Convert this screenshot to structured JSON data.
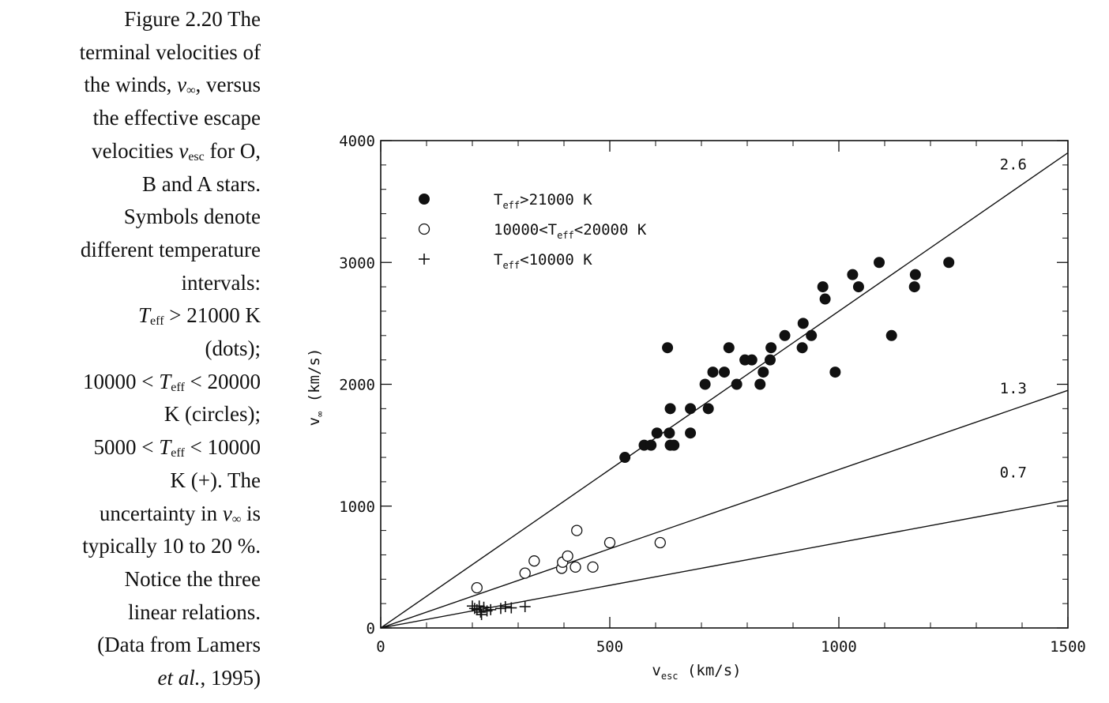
{
  "caption": {
    "figure_label": "Figure 2.20",
    "lines": [
      {
        "type": "text",
        "text": "Figure 2.20 The"
      },
      {
        "type": "text",
        "text": "terminal velocities of"
      },
      {
        "type": "parts",
        "parts": [
          {
            "t": "the winds, "
          },
          {
            "t": "v",
            "i": true
          },
          {
            "t": "∞",
            "sub": true,
            "i": true
          },
          {
            "t": ", versus"
          }
        ]
      },
      {
        "type": "text",
        "text": "the effective escape"
      },
      {
        "type": "parts",
        "parts": [
          {
            "t": "velocities "
          },
          {
            "t": "v",
            "i": true
          },
          {
            "t": "esc",
            "sub": true
          },
          {
            "t": " for O,"
          }
        ]
      },
      {
        "type": "text",
        "text": "B and A stars."
      },
      {
        "type": "text",
        "text": "Symbols denote"
      },
      {
        "type": "text",
        "text": "different temperature"
      },
      {
        "type": "text",
        "text": "intervals:"
      },
      {
        "type": "parts",
        "parts": [
          {
            "t": "T",
            "i": true
          },
          {
            "t": "eff",
            "sub": true
          },
          {
            "t": " > 21000 K"
          }
        ]
      },
      {
        "type": "text",
        "text": "(dots);"
      },
      {
        "type": "parts",
        "parts": [
          {
            "t": "10000 < "
          },
          {
            "t": "T",
            "i": true
          },
          {
            "t": "eff",
            "sub": true
          },
          {
            "t": " < 20000"
          }
        ]
      },
      {
        "type": "text",
        "text": "K (circles);"
      },
      {
        "type": "parts",
        "parts": [
          {
            "t": "5000 < "
          },
          {
            "t": "T",
            "i": true
          },
          {
            "t": "eff",
            "sub": true
          },
          {
            "t": " < 10000"
          }
        ]
      },
      {
        "type": "text",
        "text": "K (+). The"
      },
      {
        "type": "parts",
        "parts": [
          {
            "t": "uncertainty in "
          },
          {
            "t": "v",
            "i": true
          },
          {
            "t": "∞",
            "sub": true,
            "i": true
          },
          {
            "t": " is"
          }
        ]
      },
      {
        "type": "text",
        "text": "typically 10 to 20 %."
      },
      {
        "type": "text",
        "text": "Notice the three"
      },
      {
        "type": "text",
        "text": "linear relations."
      },
      {
        "type": "text",
        "text": "(Data from Lamers"
      },
      {
        "type": "parts",
        "parts": [
          {
            "t": "et al.",
            "i": true
          },
          {
            "t": ", 1995)"
          }
        ]
      }
    ]
  },
  "chart_data": {
    "type": "scatter",
    "xlabel": {
      "main": "v",
      "sub": "esc",
      "unit": " (km/s)"
    },
    "ylabel": {
      "main": "v",
      "sub": "∞",
      "unit": " (km/s)"
    },
    "xlim": [
      0,
      1500
    ],
    "ylim": [
      0,
      4000
    ],
    "xticks": [
      0,
      500,
      1000,
      1500
    ],
    "yticks": [
      0,
      1000,
      2000,
      3000,
      4000
    ],
    "legend": {
      "placement": "top-left",
      "entries": [
        {
          "symbol": "dot",
          "main": "T",
          "sub": "eff",
          "rest": ">21000 K"
        },
        {
          "symbol": "circle",
          "main": "10000<T",
          "sub": "eff",
          "rest": "<20000 K"
        },
        {
          "symbol": "plus",
          "main": "T",
          "sub": "eff",
          "rest": "<10000 K"
        }
      ]
    },
    "lines": [
      {
        "slope": 2.6,
        "label": "2.6"
      },
      {
        "slope": 1.3,
        "label": "1.3"
      },
      {
        "slope": 0.7,
        "label": "0.7"
      }
    ],
    "series": [
      {
        "symbol": "dot",
        "points": [
          [
            533,
            1400
          ],
          [
            575,
            1500
          ],
          [
            590,
            1500
          ],
          [
            603,
            1600
          ],
          [
            626,
            2300
          ],
          [
            630,
            1600
          ],
          [
            632,
            1800
          ],
          [
            632,
            1500
          ],
          [
            640,
            1500
          ],
          [
            676,
            1800
          ],
          [
            676,
            1600
          ],
          [
            708,
            2000
          ],
          [
            715,
            1800
          ],
          [
            725,
            2100
          ],
          [
            750,
            2100
          ],
          [
            760,
            2300
          ],
          [
            777,
            2000
          ],
          [
            795,
            2200
          ],
          [
            810,
            2200
          ],
          [
            828,
            2000
          ],
          [
            835,
            2100
          ],
          [
            850,
            2200
          ],
          [
            852,
            2300
          ],
          [
            882,
            2400
          ],
          [
            920,
            2300
          ],
          [
            922,
            2500
          ],
          [
            940,
            2400
          ],
          [
            965,
            2800
          ],
          [
            970,
            2700
          ],
          [
            992,
            2100
          ],
          [
            1030,
            2900
          ],
          [
            1043,
            2800
          ],
          [
            1088,
            3000
          ],
          [
            1115,
            2400
          ],
          [
            1165,
            2800
          ],
          [
            1167,
            2900
          ],
          [
            1240,
            3000
          ]
        ]
      },
      {
        "symbol": "circle",
        "points": [
          [
            210,
            330
          ],
          [
            315,
            450
          ],
          [
            335,
            550
          ],
          [
            395,
            490
          ],
          [
            397,
            540
          ],
          [
            408,
            590
          ],
          [
            425,
            500
          ],
          [
            428,
            800
          ],
          [
            463,
            500
          ],
          [
            500,
            700
          ],
          [
            610,
            700
          ]
        ]
      },
      {
        "symbol": "plus",
        "points": [
          [
            200,
            180
          ],
          [
            205,
            160
          ],
          [
            210,
            150
          ],
          [
            215,
            180
          ],
          [
            218,
            130
          ],
          [
            220,
            110
          ],
          [
            225,
            170
          ],
          [
            232,
            140
          ],
          [
            240,
            150
          ],
          [
            262,
            160
          ],
          [
            272,
            175
          ],
          [
            285,
            165
          ],
          [
            315,
            175
          ]
        ]
      }
    ]
  }
}
